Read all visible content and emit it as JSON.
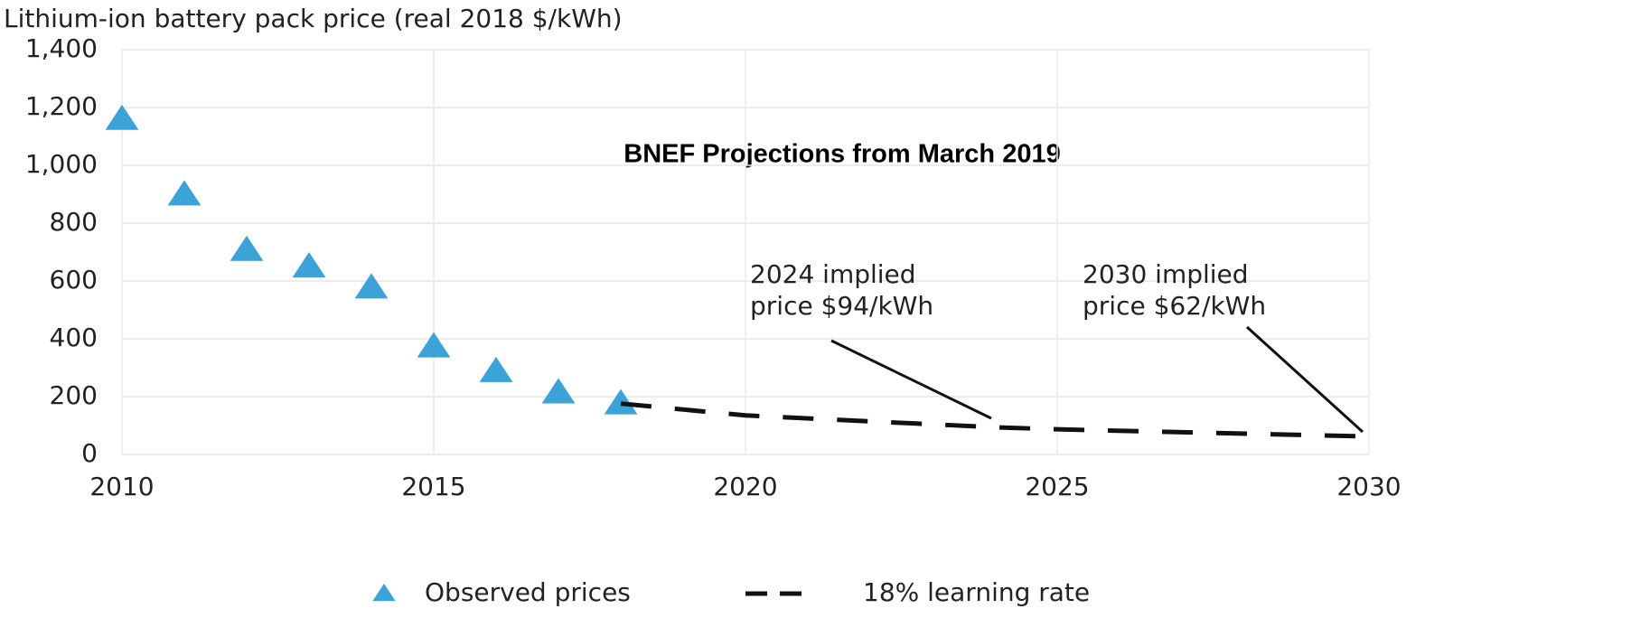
{
  "chart_data": {
    "type": "line",
    "y_axis_title": "Lithium-ion battery pack price (real 2018 $/kWh)",
    "title": "BNEF Projections from March 2019",
    "xlim": [
      2010,
      2030
    ],
    "xticks": [
      2010,
      2015,
      2020,
      2025,
      2030
    ],
    "ylim": [
      0,
      1400
    ],
    "yticks": [
      0,
      200,
      400,
      600,
      800,
      {
        "value": 1000,
        "label": "1,000"
      },
      {
        "value": 1200,
        "label": "1,200"
      },
      {
        "value": 1400,
        "label": "1,400"
      }
    ],
    "grid": true,
    "legend": "bottom",
    "series": [
      {
        "name": "Observed prices",
        "color": "#3ba3d8",
        "marker": "triangle",
        "x": [
          2010,
          2011,
          2012,
          2013,
          2014,
          2015,
          2016,
          2017,
          2018
        ],
        "values": [
          1160,
          899,
          707,
          650,
          577,
          373,
          288,
          214,
          176
        ]
      },
      {
        "name": "18% learning rate",
        "color": "#111111",
        "dashed": true,
        "x": [
          2018,
          2020,
          2024,
          2025,
          2030
        ],
        "values": [
          176,
          135,
          94,
          87,
          62
        ]
      }
    ],
    "annotations": [
      {
        "lines": [
          "2024 implied",
          "price $94/kWh"
        ]
      },
      {
        "lines": [
          "2030 implied",
          "price $62/kWh"
        ]
      }
    ]
  }
}
